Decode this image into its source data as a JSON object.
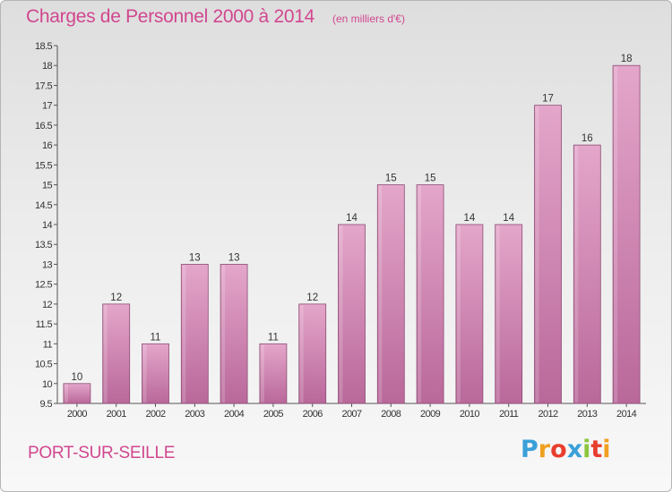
{
  "header": {
    "title": "Charges de Personnel 2000 à 2014",
    "unit": "(en milliers d'€)"
  },
  "footer": {
    "city": "PORT-SUR-SEILLE",
    "logo_letters": [
      "P",
      "r",
      "o",
      "x",
      "i",
      "t",
      "i"
    ],
    "logo_colors": [
      "#3aa0d8",
      "#f0a020",
      "#e83e2e",
      "#3aa0d8",
      "#8cc63f",
      "#e83e2e",
      "#f0a020"
    ]
  },
  "colors": {
    "bar": "#d98bb8",
    "bar_dark": "#b9689a",
    "accent": "#d1478f"
  },
  "chart_data": {
    "type": "bar",
    "categories": [
      "2000",
      "2001",
      "2002",
      "2003",
      "2004",
      "2005",
      "2006",
      "2007",
      "2008",
      "2009",
      "2010",
      "2011",
      "2012",
      "2013",
      "2014"
    ],
    "values": [
      10,
      12,
      11,
      13,
      13,
      11,
      12,
      14,
      15,
      15,
      14,
      14,
      17,
      16,
      18
    ],
    "title": "Charges de Personnel 2000 à 2014",
    "subtitle": "(en milliers d'€)",
    "xlabel": "",
    "ylabel": "",
    "ylim": [
      9.5,
      18.5
    ],
    "yticks": [
      "9.5",
      "10",
      "10.5",
      "11",
      "11.5",
      "12",
      "12.5",
      "13",
      "13.5",
      "14",
      "14.5",
      "15",
      "15.5",
      "16",
      "16.5",
      "17",
      "17.5",
      "18",
      "18.5"
    ],
    "grid": false,
    "legend": "none"
  }
}
